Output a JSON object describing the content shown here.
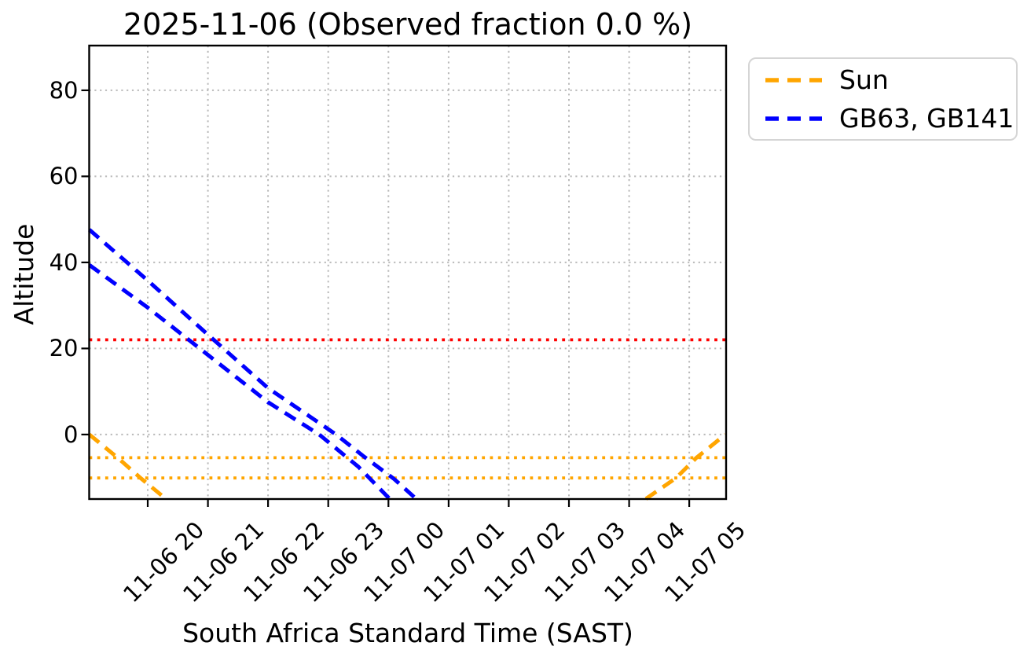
{
  "chart_data": {
    "type": "line",
    "title": "2025-11-06 (Observed fraction 0.0 %)",
    "xlabel": "South Africa Standard Time (SAST)",
    "ylabel": "Altitude",
    "xlim_hours": [
      19.027,
      29.612
    ],
    "ylim": [
      -15,
      90.4
    ],
    "grid": true,
    "grid_color": "#b9b9b9",
    "axis_color": "#000000",
    "y_ticks": [
      0,
      20,
      40,
      60,
      80
    ],
    "x_ticks": [
      {
        "hour": 20,
        "label": "11-06 20"
      },
      {
        "hour": 21,
        "label": "11-06 21"
      },
      {
        "hour": 22,
        "label": "11-06 22"
      },
      {
        "hour": 23,
        "label": "11-06 23"
      },
      {
        "hour": 24,
        "label": "11-07 00"
      },
      {
        "hour": 25,
        "label": "11-07 01"
      },
      {
        "hour": 26,
        "label": "11-07 02"
      },
      {
        "hour": 27,
        "label": "11-07 03"
      },
      {
        "hour": 28,
        "label": "11-07 04"
      },
      {
        "hour": 29,
        "label": "11-07 05"
      }
    ],
    "hlines": [
      {
        "name": "altitude-limit-line",
        "alt": 22,
        "color": "#ff0000"
      },
      {
        "name": "sun-twilight-line-1",
        "alt": -5.4,
        "color": "#ffa500"
      },
      {
        "name": "sun-twilight-line-2",
        "alt": -10.1,
        "color": "#ffa500"
      }
    ],
    "series": [
      {
        "name": "Sun",
        "color": "#ffa500",
        "style": "dashed",
        "segments": [
          [
            [
              19.03,
              0
            ],
            [
              19.5,
              -5.4
            ],
            [
              19.88,
              -10.1
            ],
            [
              20.3,
              -14.95
            ]
          ],
          [
            [
              28.28,
              -14.95
            ],
            [
              28.78,
              -10.1
            ],
            [
              29.12,
              -5.4
            ],
            [
              29.6,
              0
            ]
          ]
        ]
      },
      {
        "name": "GB63, GB141",
        "color": "#0000ff",
        "style": "dashed",
        "segments": [
          [
            [
              19.03,
              47.6
            ],
            [
              20.0,
              35.8
            ],
            [
              21.0,
              23.2
            ],
            [
              22.0,
              10.8
            ],
            [
              23.13,
              0
            ],
            [
              23.6,
              -5.2
            ],
            [
              24.1,
              -10.4
            ],
            [
              24.46,
              -14.95
            ]
          ],
          [
            [
              19.03,
              39.4
            ],
            [
              20.0,
              29.5
            ],
            [
              21.0,
              18.5
            ],
            [
              22.0,
              7.5
            ],
            [
              22.85,
              0
            ],
            [
              23.5,
              -7.5
            ],
            [
              24.02,
              -14.95
            ]
          ]
        ]
      }
    ],
    "legend": [
      {
        "label": "Sun",
        "color": "#ffa500"
      },
      {
        "label": "GB63, GB141",
        "color": "#0000ff"
      }
    ],
    "legend_position": "upper right, outside axes"
  }
}
